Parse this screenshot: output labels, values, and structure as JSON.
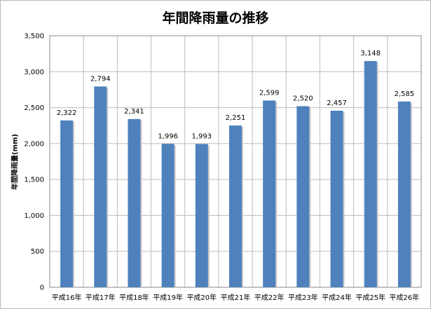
{
  "chart_data": {
    "type": "bar",
    "title": "年間降雨量の推移",
    "xlabel": "",
    "ylabel": "年間降雨量(mm)",
    "categories": [
      "平成16年",
      "平成17年",
      "平成18年",
      "平成19年",
      "平成20年",
      "平成21年",
      "平成22年",
      "平成23年",
      "平成24年",
      "平成25年",
      "平成26年"
    ],
    "values": [
      2322,
      2794,
      2341,
      1996,
      1993,
      2251,
      2599,
      2520,
      2457,
      3148,
      2585
    ],
    "data_labels": [
      "2,322",
      "2,794",
      "2,341",
      "1,996",
      "1,993",
      "2,251",
      "2,599",
      "2,520",
      "2,457",
      "3,148",
      "2,585"
    ],
    "ylim": [
      0,
      3500
    ],
    "yticks": [
      "0",
      "500",
      "1,000",
      "1,500",
      "2,000",
      "2,500",
      "3,000",
      "3,500"
    ],
    "grid": true,
    "bar_color": "#4f81bd",
    "legend": "none"
  }
}
